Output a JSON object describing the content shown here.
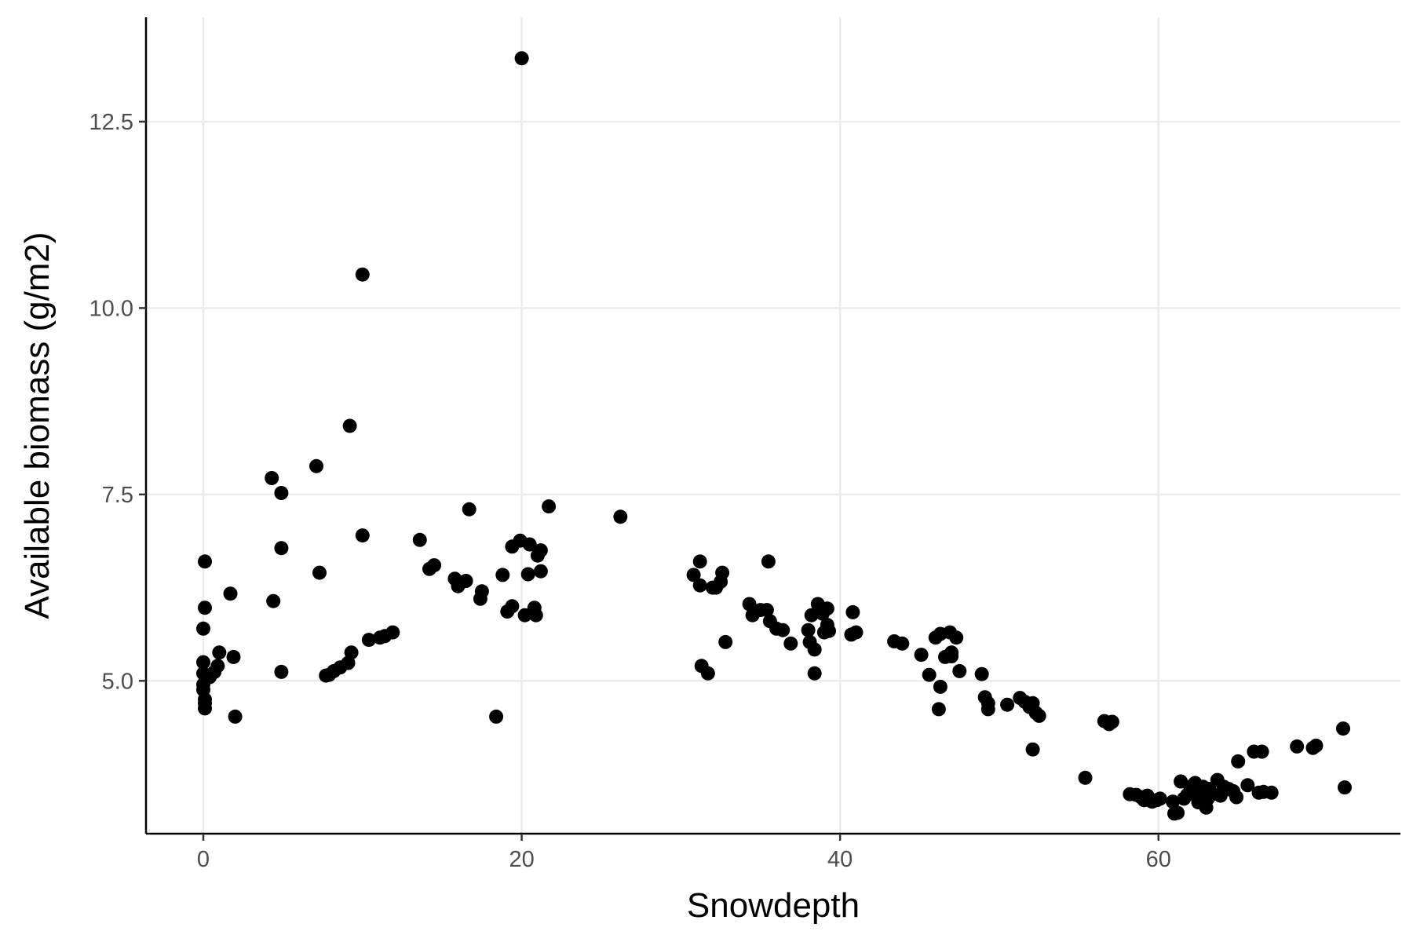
{
  "chart_data": {
    "type": "scatter",
    "title": "",
    "xlabel": "Snowdepth",
    "ylabel": "Available biomass (g/m2)",
    "xlim": [
      -3.6,
      75.2
    ],
    "ylim": [
      2.95,
      13.9
    ],
    "x_ticks": [
      0,
      20,
      40,
      60
    ],
    "x_tick_labels": [
      "0",
      "20",
      "40",
      "60"
    ],
    "y_ticks": [
      5.0,
      7.5,
      10.0,
      12.5
    ],
    "y_tick_labels": [
      "5.0",
      "7.5",
      "10.0",
      "12.5"
    ],
    "grid": true,
    "point_color": "#000000",
    "points": [
      [
        0.0,
        5.25
      ],
      [
        0.0,
        5.1
      ],
      [
        0.0,
        4.95
      ],
      [
        0.0,
        4.88
      ],
      [
        0.0,
        5.7
      ],
      [
        0.1,
        5.98
      ],
      [
        0.1,
        6.6
      ],
      [
        0.1,
        4.75
      ],
      [
        0.1,
        4.7
      ],
      [
        0.1,
        4.63
      ],
      [
        0.4,
        5.05
      ],
      [
        0.7,
        5.12
      ],
      [
        0.9,
        5.2
      ],
      [
        1.0,
        5.38
      ],
      [
        1.7,
        6.17
      ],
      [
        1.9,
        5.32
      ],
      [
        2.0,
        4.52
      ],
      [
        4.3,
        7.72
      ],
      [
        4.4,
        6.07
      ],
      [
        4.9,
        7.52
      ],
      [
        4.9,
        6.78
      ],
      [
        4.9,
        5.12
      ],
      [
        7.1,
        7.88
      ],
      [
        7.3,
        6.45
      ],
      [
        7.7,
        5.07
      ],
      [
        7.9,
        5.08
      ],
      [
        8.2,
        5.13
      ],
      [
        8.6,
        5.18
      ],
      [
        9.1,
        5.24
      ],
      [
        9.3,
        5.38
      ],
      [
        9.2,
        8.42
      ],
      [
        10.0,
        10.45
      ],
      [
        10.0,
        6.95
      ],
      [
        10.4,
        5.55
      ],
      [
        11.1,
        5.58
      ],
      [
        11.4,
        5.6
      ],
      [
        11.9,
        5.65
      ],
      [
        13.6,
        6.89
      ],
      [
        14.2,
        6.5
      ],
      [
        14.5,
        6.55
      ],
      [
        15.8,
        6.37
      ],
      [
        16.0,
        6.27
      ],
      [
        16.2,
        6.32
      ],
      [
        16.5,
        6.34
      ],
      [
        16.7,
        7.3
      ],
      [
        17.4,
        6.1
      ],
      [
        17.5,
        6.2
      ],
      [
        18.4,
        4.52
      ],
      [
        18.8,
        6.42
      ],
      [
        19.1,
        5.93
      ],
      [
        19.4,
        6.0
      ],
      [
        19.4,
        6.8
      ],
      [
        19.9,
        6.88
      ],
      [
        20.0,
        13.35
      ],
      [
        20.2,
        5.88
      ],
      [
        20.4,
        6.43
      ],
      [
        20.5,
        6.83
      ],
      [
        20.8,
        5.98
      ],
      [
        20.9,
        5.88
      ],
      [
        21.0,
        6.68
      ],
      [
        21.2,
        6.47
      ],
      [
        21.2,
        6.75
      ],
      [
        21.7,
        7.34
      ],
      [
        26.2,
        7.2
      ],
      [
        30.8,
        6.42
      ],
      [
        31.2,
        6.6
      ],
      [
        31.2,
        6.28
      ],
      [
        31.3,
        5.2
      ],
      [
        31.7,
        5.1
      ],
      [
        32.0,
        6.25
      ],
      [
        32.2,
        6.25
      ],
      [
        32.5,
        6.33
      ],
      [
        32.6,
        6.45
      ],
      [
        32.8,
        5.52
      ],
      [
        34.3,
        6.03
      ],
      [
        34.5,
        5.88
      ],
      [
        35.0,
        5.95
      ],
      [
        35.4,
        5.95
      ],
      [
        35.5,
        6.6
      ],
      [
        35.6,
        5.8
      ],
      [
        36.0,
        5.7
      ],
      [
        36.4,
        5.68
      ],
      [
        36.9,
        5.5
      ],
      [
        38.0,
        5.68
      ],
      [
        38.1,
        5.52
      ],
      [
        38.2,
        5.88
      ],
      [
        38.4,
        5.42
      ],
      [
        38.4,
        5.1
      ],
      [
        38.6,
        6.03
      ],
      [
        38.9,
        5.9
      ],
      [
        39.0,
        5.65
      ],
      [
        39.2,
        5.97
      ],
      [
        39.2,
        5.75
      ],
      [
        39.3,
        5.67
      ],
      [
        40.7,
        5.62
      ],
      [
        40.8,
        5.92
      ],
      [
        41.0,
        5.65
      ],
      [
        43.4,
        5.53
      ],
      [
        43.9,
        5.5
      ],
      [
        45.1,
        5.35
      ],
      [
        45.6,
        5.08
      ],
      [
        46.0,
        5.58
      ],
      [
        46.3,
        5.63
      ],
      [
        46.2,
        4.62
      ],
      [
        46.3,
        4.92
      ],
      [
        46.6,
        5.32
      ],
      [
        46.9,
        5.65
      ],
      [
        47.0,
        5.33
      ],
      [
        47.0,
        5.38
      ],
      [
        47.3,
        5.58
      ],
      [
        47.5,
        5.13
      ],
      [
        48.9,
        5.09
      ],
      [
        49.1,
        4.78
      ],
      [
        49.3,
        4.7
      ],
      [
        49.3,
        4.62
      ],
      [
        50.5,
        4.68
      ],
      [
        51.3,
        4.77
      ],
      [
        51.6,
        4.72
      ],
      [
        51.9,
        4.65
      ],
      [
        52.1,
        4.7
      ],
      [
        52.3,
        4.57
      ],
      [
        52.5,
        4.53
      ],
      [
        52.1,
        4.08
      ],
      [
        55.4,
        3.7
      ],
      [
        56.6,
        4.46
      ],
      [
        56.9,
        4.42
      ],
      [
        57.1,
        4.45
      ],
      [
        58.2,
        3.48
      ],
      [
        58.6,
        3.47
      ],
      [
        58.9,
        3.44
      ],
      [
        59.1,
        3.4
      ],
      [
        59.3,
        3.46
      ],
      [
        59.6,
        3.38
      ],
      [
        59.9,
        3.4
      ],
      [
        60.1,
        3.42
      ],
      [
        60.9,
        3.38
      ],
      [
        61.0,
        3.22
      ],
      [
        61.2,
        3.23
      ],
      [
        61.4,
        3.65
      ],
      [
        61.6,
        3.42
      ],
      [
        61.8,
        3.47
      ],
      [
        62.0,
        3.58
      ],
      [
        62.1,
        3.55
      ],
      [
        62.3,
        3.63
      ],
      [
        62.5,
        3.37
      ],
      [
        62.6,
        3.48
      ],
      [
        62.8,
        3.58
      ],
      [
        62.9,
        3.55
      ],
      [
        63.0,
        3.3
      ],
      [
        63.1,
        3.42
      ],
      [
        63.2,
        3.55
      ],
      [
        63.4,
        3.48
      ],
      [
        63.7,
        3.67
      ],
      [
        63.9,
        3.46
      ],
      [
        64.1,
        3.58
      ],
      [
        64.4,
        3.55
      ],
      [
        64.7,
        3.52
      ],
      [
        64.9,
        3.44
      ],
      [
        65.0,
        3.92
      ],
      [
        65.6,
        3.6
      ],
      [
        66.0,
        4.05
      ],
      [
        66.3,
        3.5
      ],
      [
        66.6,
        3.51
      ],
      [
        66.5,
        4.05
      ],
      [
        67.1,
        3.5
      ],
      [
        68.7,
        4.12
      ],
      [
        69.7,
        4.1
      ],
      [
        69.9,
        4.13
      ],
      [
        71.6,
        4.36
      ],
      [
        71.7,
        3.57
      ]
    ]
  }
}
